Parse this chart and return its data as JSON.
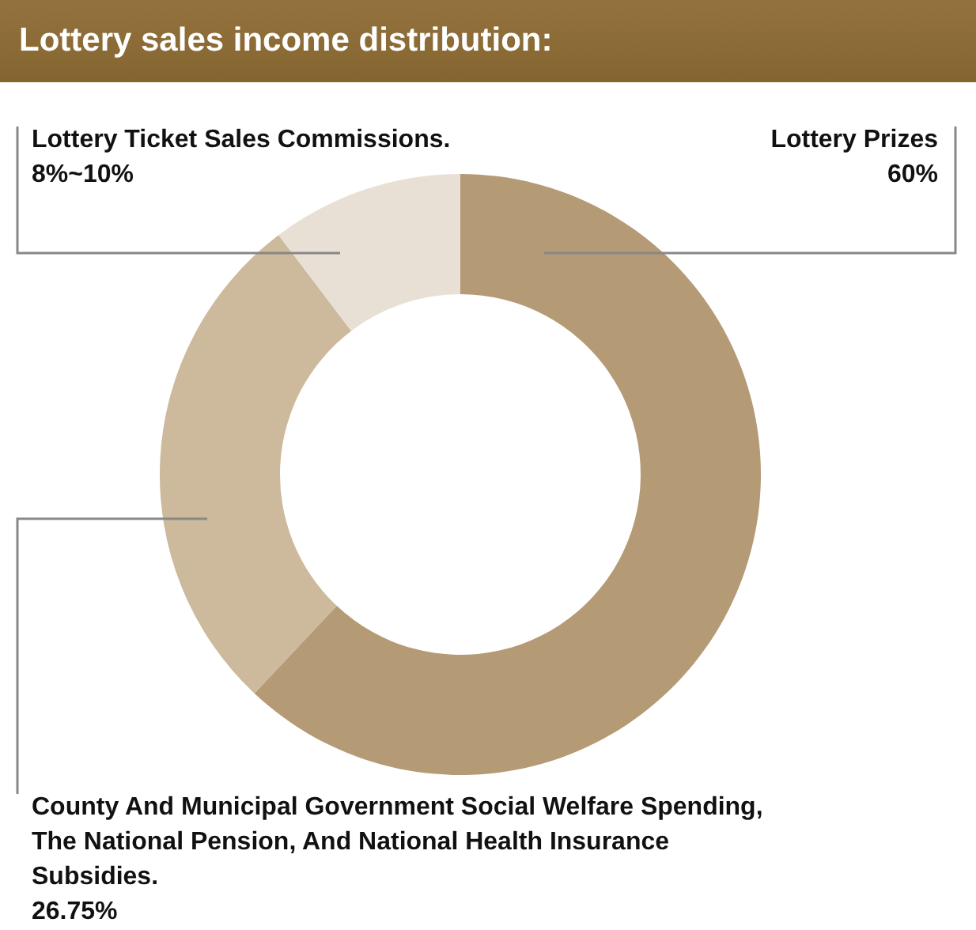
{
  "chart_data": {
    "type": "donut",
    "title": "Lottery sales income distribution:",
    "categories": [
      "Lottery Prizes",
      "County And Municipal Government Social Welfare Spending, The National Pension, And National Health Insurance Subsidies.",
      "Lottery Ticket Sales Commissions."
    ],
    "values": [
      60,
      26.75,
      10
    ],
    "value_labels": [
      "60%",
      "26.75%",
      "8%~10%"
    ],
    "colors": [
      "#b59a76",
      "#cdb99c",
      "#e8e0d4"
    ],
    "legend": false
  }
}
